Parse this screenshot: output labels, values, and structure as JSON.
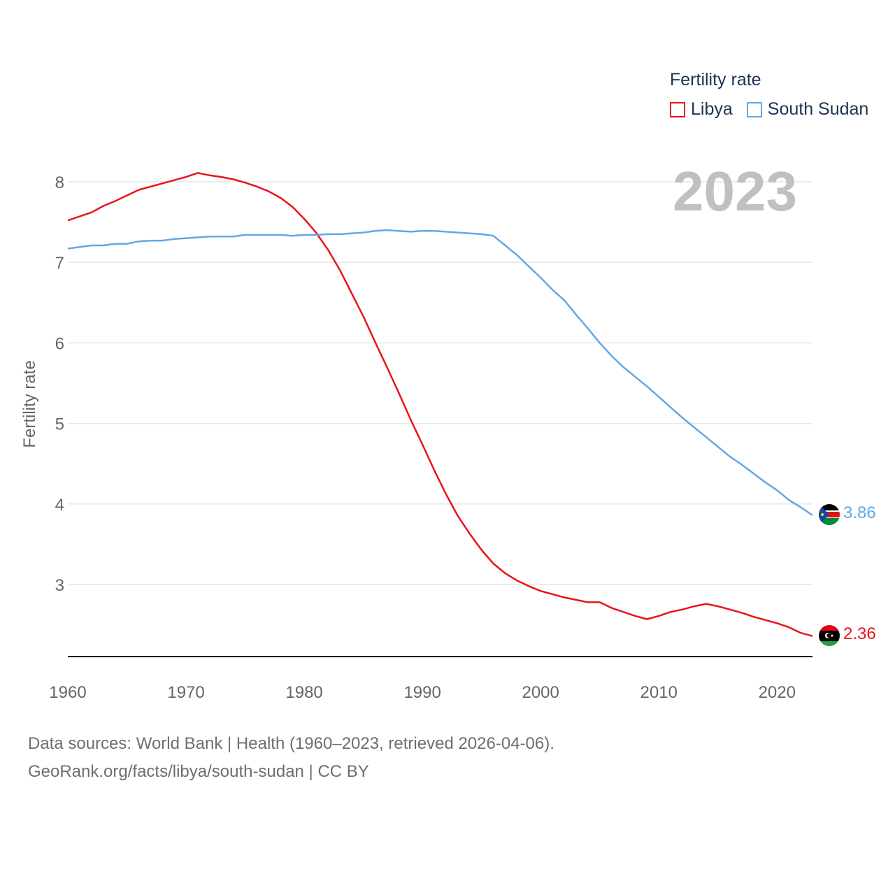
{
  "legend": {
    "title": "Fertility rate",
    "items": [
      {
        "label": "Libya",
        "color": "#e8141c"
      },
      {
        "label": "South Sudan",
        "color": "#62a8e5"
      }
    ]
  },
  "year_label": "2023",
  "end_labels": {
    "south_sudan": "3.86",
    "libya": "2.36"
  },
  "footer": {
    "line1": "Data sources: World Bank | Health (1960–2023, retrieved 2026-04-06).",
    "line2": "GeoRank.org/facts/libya/south-sudan | CC BY"
  },
  "chart_data": {
    "type": "line",
    "title": "Fertility rate",
    "xlabel": "",
    "ylabel": "Fertility rate",
    "xlim": [
      1960,
      2023
    ],
    "ylim": [
      2.1,
      8.3
    ],
    "y_ticks": [
      3,
      4,
      5,
      6,
      7,
      8
    ],
    "x_ticks": [
      1960,
      1970,
      1980,
      1990,
      2000,
      2010,
      2020
    ],
    "grid": true,
    "legend_position": "top-right",
    "x": [
      1960,
      1961,
      1962,
      1963,
      1964,
      1965,
      1966,
      1967,
      1968,
      1969,
      1970,
      1971,
      1972,
      1973,
      1974,
      1975,
      1976,
      1977,
      1978,
      1979,
      1980,
      1981,
      1982,
      1983,
      1984,
      1985,
      1986,
      1987,
      1988,
      1989,
      1990,
      1991,
      1992,
      1993,
      1994,
      1995,
      1996,
      1997,
      1998,
      1999,
      2000,
      2001,
      2002,
      2003,
      2004,
      2005,
      2006,
      2007,
      2008,
      2009,
      2010,
      2011,
      2012,
      2013,
      2014,
      2015,
      2016,
      2017,
      2018,
      2019,
      2020,
      2021,
      2022,
      2023
    ],
    "series": [
      {
        "name": "Libya",
        "color": "#e8141c",
        "values": [
          7.52,
          7.57,
          7.62,
          7.7,
          7.76,
          7.83,
          7.9,
          7.94,
          7.98,
          8.02,
          8.06,
          8.11,
          8.08,
          8.06,
          8.03,
          7.99,
          7.94,
          7.88,
          7.8,
          7.69,
          7.54,
          7.37,
          7.16,
          6.91,
          6.62,
          6.33,
          6.01,
          5.7,
          5.38,
          5.05,
          4.74,
          4.42,
          4.12,
          3.85,
          3.63,
          3.43,
          3.26,
          3.14,
          3.05,
          2.98,
          2.92,
          2.88,
          2.84,
          2.81,
          2.78,
          2.78,
          2.71,
          2.66,
          2.61,
          2.57,
          2.61,
          2.66,
          2.69,
          2.73,
          2.76,
          2.73,
          2.69,
          2.65,
          2.6,
          2.56,
          2.52,
          2.47,
          2.4,
          2.36
        ]
      },
      {
        "name": "South Sudan",
        "color": "#62a8e5",
        "values": [
          7.17,
          7.19,
          7.21,
          7.21,
          7.23,
          7.23,
          7.26,
          7.27,
          7.27,
          7.29,
          7.3,
          7.31,
          7.32,
          7.32,
          7.32,
          7.34,
          7.34,
          7.34,
          7.34,
          7.33,
          7.34,
          7.34,
          7.35,
          7.35,
          7.36,
          7.37,
          7.39,
          7.4,
          7.39,
          7.38,
          7.39,
          7.39,
          7.38,
          7.37,
          7.36,
          7.35,
          7.33,
          7.21,
          7.09,
          6.95,
          6.81,
          6.66,
          6.53,
          6.35,
          6.18,
          6.0,
          5.84,
          5.7,
          5.58,
          5.46,
          5.33,
          5.2,
          5.07,
          4.95,
          4.83,
          4.71,
          4.59,
          4.49,
          4.38,
          4.27,
          4.17,
          4.05,
          3.96,
          3.86
        ]
      }
    ]
  }
}
